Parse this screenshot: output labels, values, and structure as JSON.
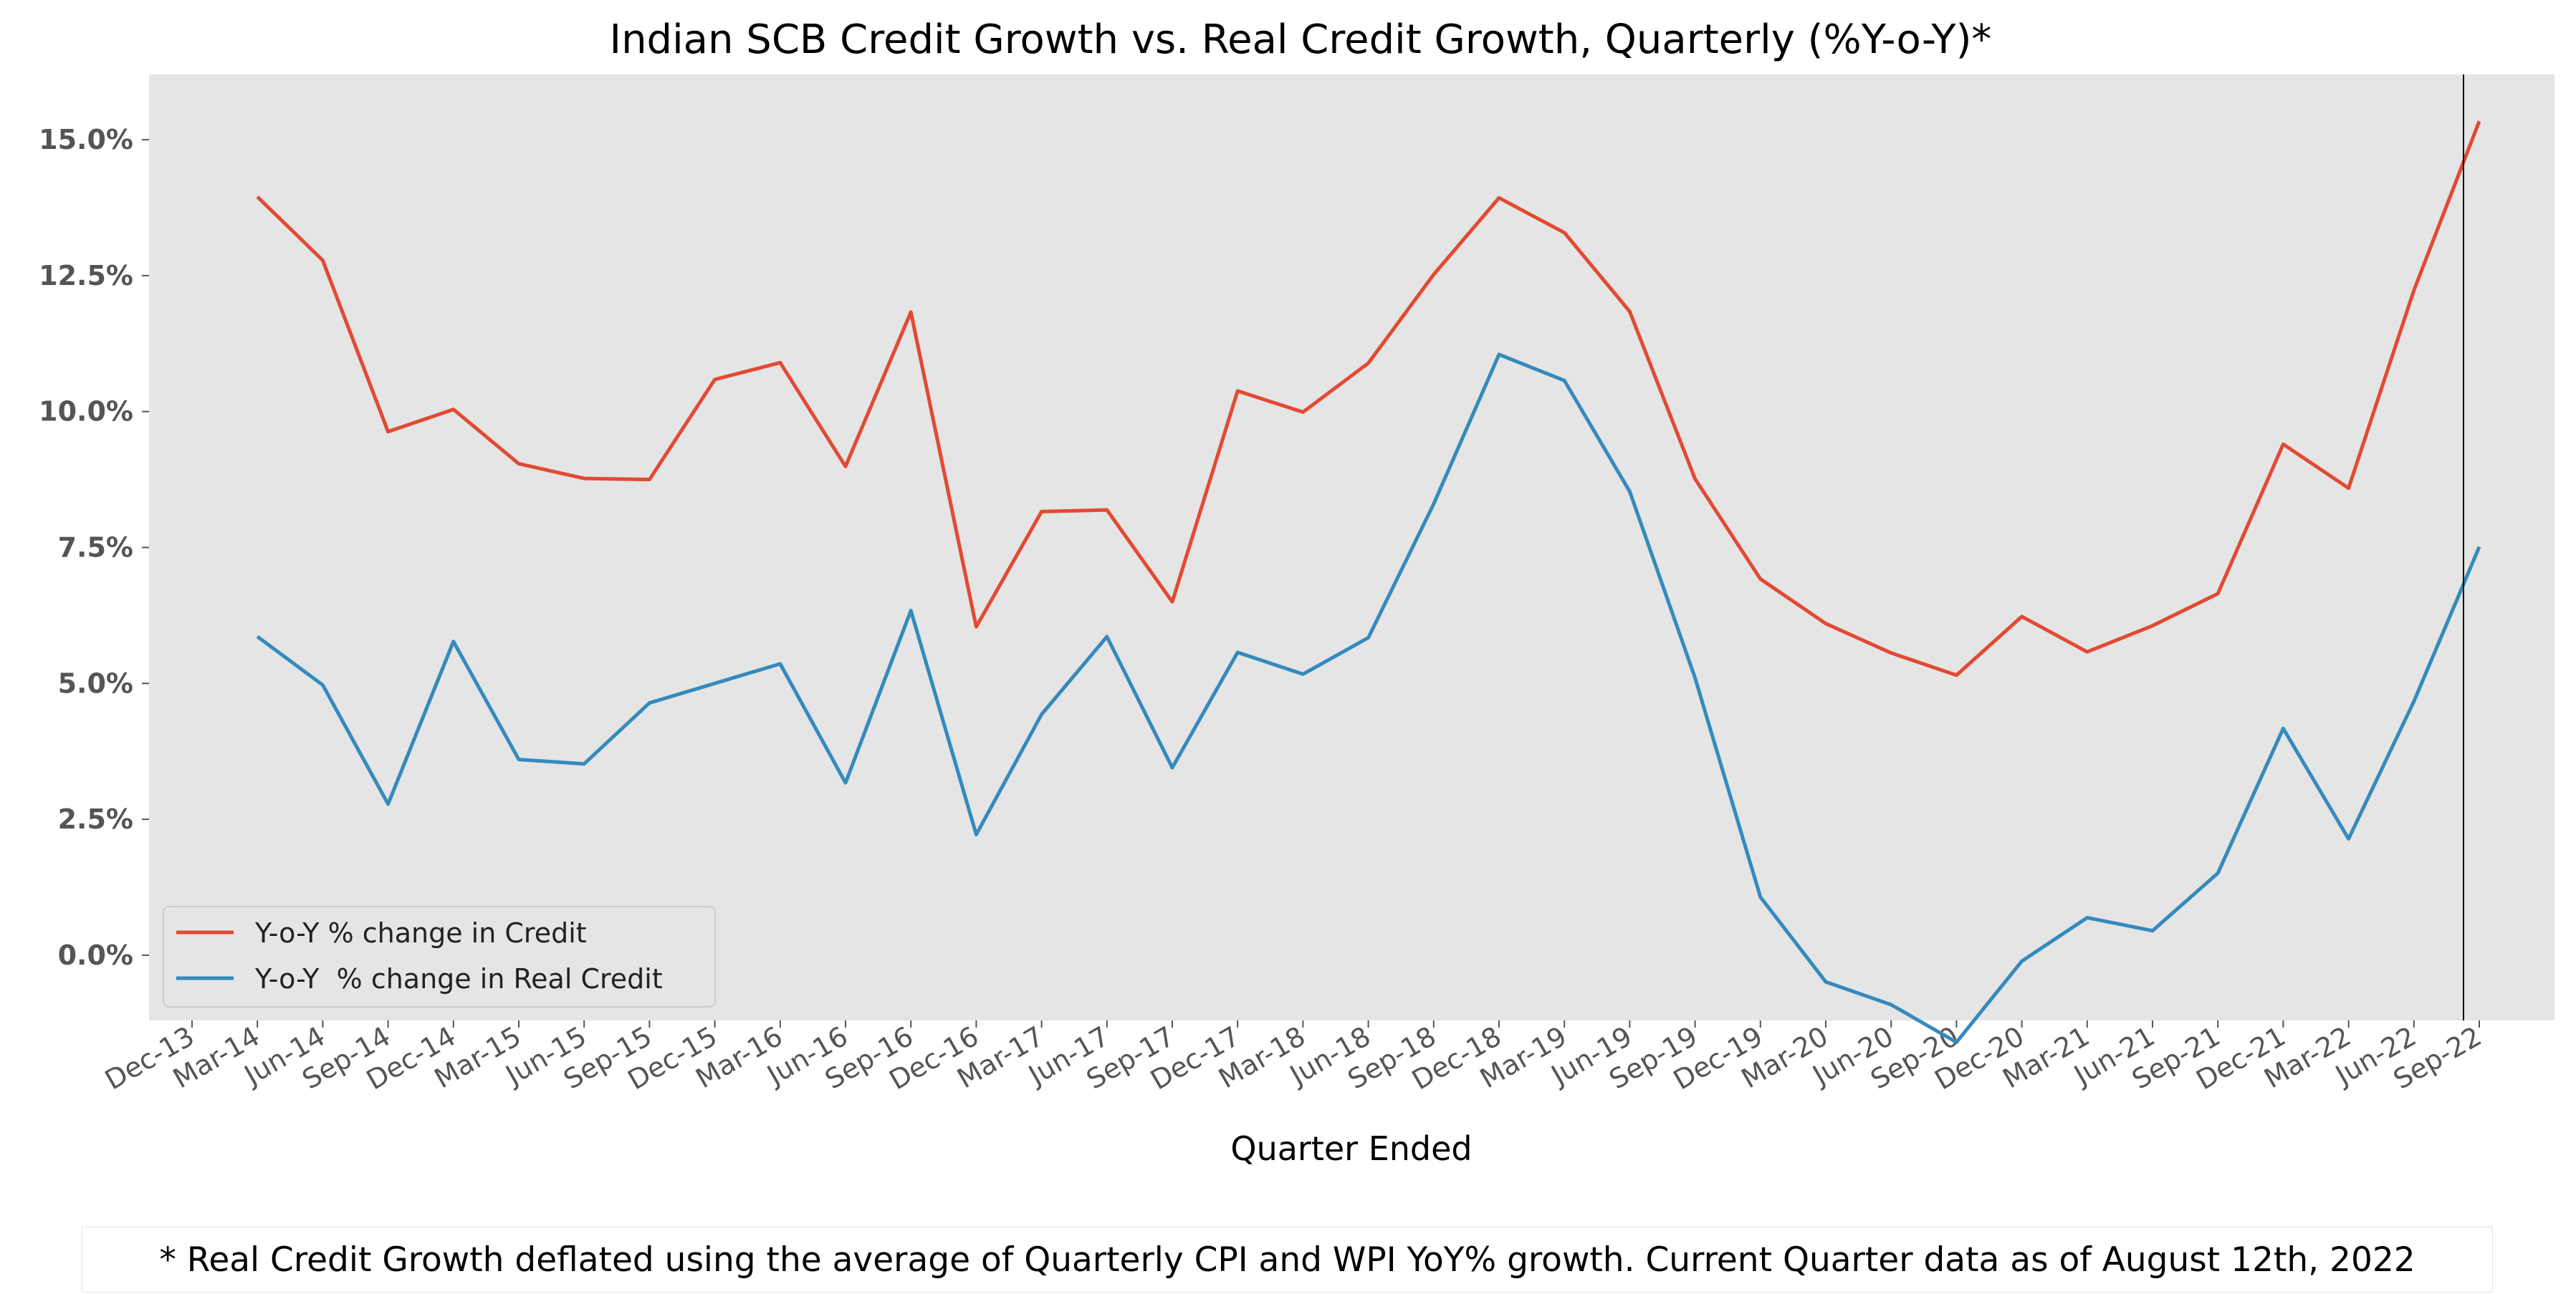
{
  "chart_data": {
    "type": "line",
    "title": "Indian SCB Credit Growth vs. Real Credit Growth, Quarterly (%Y-o-Y)*",
    "xlabel": "Quarter Ended",
    "ylabel": "",
    "ylim": [
      -1.2,
      16.2
    ],
    "yticks": [
      0,
      2.5,
      5,
      7.5,
      10,
      12.5,
      15
    ],
    "ytick_labels": [
      "0.0%",
      "2.5%",
      "5.0%",
      "7.5%",
      "10.0%",
      "12.5%",
      "15.0%"
    ],
    "x_tick_labels": [
      "Dec-13",
      "Mar-14",
      "Jun-14",
      "Sep-14",
      "Dec-14",
      "Mar-15",
      "Jun-15",
      "Sep-15",
      "Dec-15",
      "Mar-16",
      "Jun-16",
      "Sep-16",
      "Dec-16",
      "Mar-17",
      "Jun-17",
      "Sep-17",
      "Dec-17",
      "Mar-18",
      "Jun-18",
      "Sep-18",
      "Dec-18",
      "Mar-19",
      "Jun-19",
      "Sep-19",
      "Dec-19",
      "Mar-20",
      "Jun-20",
      "Sep-20",
      "Dec-20",
      "Mar-21",
      "Jun-21",
      "Sep-21",
      "Dec-21",
      "Mar-22",
      "Jun-22",
      "Sep-22"
    ],
    "categories": [
      "Mar-14",
      "Jun-14",
      "Sep-14",
      "Dec-14",
      "Mar-15",
      "Jun-15",
      "Sep-15",
      "Dec-15",
      "Mar-16",
      "Jun-16",
      "Sep-16",
      "Dec-16",
      "Mar-17",
      "Jun-17",
      "Sep-17",
      "Dec-17",
      "Mar-18",
      "Jun-18",
      "Sep-18",
      "Dec-18",
      "Mar-19",
      "Jun-19",
      "Sep-19",
      "Dec-19",
      "Mar-20",
      "Jun-20",
      "Sep-20",
      "Dec-20",
      "Mar-21",
      "Jun-21",
      "Sep-21",
      "Dec-21",
      "Mar-22",
      "Jun-22",
      "Sep-22"
    ],
    "series": [
      {
        "name": "Y-o-Y % change in Credit",
        "color": "#E24A33",
        "values": [
          13.95,
          12.78,
          9.63,
          10.04,
          9.04,
          8.77,
          8.75,
          10.59,
          10.9,
          8.99,
          11.83,
          6.04,
          8.16,
          8.19,
          6.5,
          10.38,
          9.99,
          10.89,
          12.52,
          13.93,
          13.29,
          11.84,
          8.76,
          6.92,
          6.1,
          5.56,
          5.15,
          6.23,
          5.58,
          6.06,
          6.65,
          9.4,
          8.59,
          12.23,
          15.34
        ]
      },
      {
        "name": "Y-o-Y  % change in Real Credit",
        "color": "#348ABD",
        "values": [
          5.86,
          4.97,
          2.78,
          5.77,
          3.6,
          3.52,
          4.64,
          5.0,
          5.36,
          3.17,
          6.34,
          2.22,
          4.43,
          5.86,
          3.45,
          5.57,
          5.17,
          5.84,
          8.3,
          11.05,
          10.57,
          8.53,
          5.1,
          1.07,
          -0.49,
          -0.91,
          -1.6,
          -0.11,
          0.69,
          0.45,
          1.51,
          4.17,
          2.14,
          4.67,
          7.51
        ]
      }
    ],
    "vline_at": "Sep-22",
    "legend": "lower-left",
    "grid": false,
    "background": "#E5E5E5"
  },
  "footnote": "* Real Credit Growth deflated using the average of Quarterly CPI and WPI YoY% growth. Current Quarter data as of August 12th, 2022"
}
